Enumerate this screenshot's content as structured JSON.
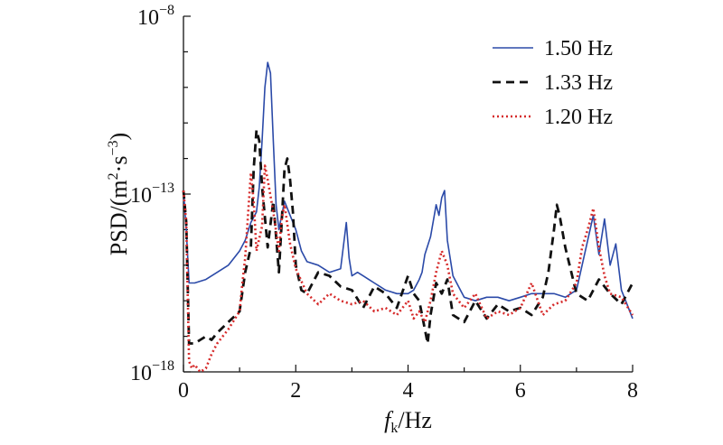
{
  "chart_data": {
    "type": "line",
    "xlabel": {
      "main": "f",
      "sub": "k",
      "rest": "/Hz"
    },
    "ylabel": {
      "base": "PSD/(m",
      "sup1": "2",
      "mid": "·s",
      "sup2": "−3",
      "end": ")"
    },
    "xlim": [
      0,
      8
    ],
    "ylim_log10": [
      -18,
      -8
    ],
    "y_scale": "log",
    "x_ticks": [
      "0",
      "2",
      "4",
      "6",
      "8"
    ],
    "y_ticks": [
      {
        "base": "10",
        "exp": "−8",
        "value": -8
      },
      {
        "base": "10",
        "exp": "−13",
        "value": -13
      },
      {
        "base": "10",
        "exp": "−18",
        "value": -18
      }
    ],
    "legend_position": "top-right",
    "series": [
      {
        "name": "1.50 Hz",
        "color": "#2b4aa8",
        "style": "solid",
        "x": [
          0,
          0.05,
          0.1,
          0.2,
          0.4,
          0.6,
          0.8,
          1.0,
          1.1,
          1.2,
          1.3,
          1.35,
          1.4,
          1.45,
          1.5,
          1.55,
          1.6,
          1.65,
          1.7,
          1.8,
          1.9,
          2.0,
          2.1,
          2.2,
          2.4,
          2.6,
          2.8,
          2.9,
          2.95,
          3.0,
          3.1,
          3.2,
          3.3,
          3.4,
          3.5,
          3.6,
          3.8,
          4.0,
          4.1,
          4.2,
          4.25,
          4.3,
          4.4,
          4.5,
          4.55,
          4.6,
          4.65,
          4.7,
          4.8,
          5.0,
          5.2,
          5.4,
          5.6,
          5.8,
          6.0,
          6.2,
          6.4,
          6.6,
          6.8,
          7.0,
          7.2,
          7.3,
          7.4,
          7.5,
          7.6,
          7.7,
          7.8,
          7.9,
          8.0
        ],
        "y_log10": [
          -12.9,
          -14.0,
          -15.5,
          -15.5,
          -15.4,
          -15.2,
          -15.0,
          -14.6,
          -14.3,
          -13.8,
          -13.5,
          -12.8,
          -11.5,
          -10.0,
          -9.3,
          -9.6,
          -11.5,
          -13.3,
          -14.0,
          -13.2,
          -13.6,
          -14.0,
          -14.6,
          -14.9,
          -15.0,
          -15.2,
          -15.1,
          -13.8,
          -14.8,
          -15.3,
          -15.2,
          -15.3,
          -15.4,
          -15.5,
          -15.6,
          -15.7,
          -15.8,
          -15.8,
          -15.7,
          -15.4,
          -15.2,
          -14.7,
          -14.2,
          -13.3,
          -13.6,
          -13.1,
          -12.9,
          -14.3,
          -15.3,
          -15.9,
          -16.0,
          -15.9,
          -15.9,
          -16.0,
          -15.9,
          -15.8,
          -15.8,
          -15.8,
          -15.9,
          -15.7,
          -14.3,
          -13.6,
          -14.7,
          -13.7,
          -15.0,
          -14.4,
          -15.7,
          -16.1,
          -16.5
        ]
      },
      {
        "name": "1.33 Hz",
        "color": "#111111",
        "style": "dashed",
        "x": [
          0,
          0.05,
          0.1,
          0.2,
          0.3,
          0.4,
          0.5,
          0.6,
          0.8,
          1.0,
          1.1,
          1.2,
          1.25,
          1.3,
          1.35,
          1.4,
          1.5,
          1.6,
          1.7,
          1.75,
          1.8,
          1.85,
          1.9,
          1.95,
          2.0,
          2.1,
          2.2,
          2.4,
          2.6,
          2.8,
          3.0,
          3.2,
          3.4,
          3.6,
          3.8,
          4.0,
          4.1,
          4.2,
          4.3,
          4.35,
          4.4,
          4.5,
          4.6,
          4.7,
          4.8,
          5.0,
          5.2,
          5.4,
          5.6,
          5.8,
          6.0,
          6.2,
          6.4,
          6.5,
          6.6,
          6.65,
          6.7,
          6.8,
          7.0,
          7.2,
          7.4,
          7.6,
          7.8,
          7.9,
          8.0
        ],
        "y_log10": [
          -12.9,
          -13.8,
          -17.2,
          -17.2,
          -17.1,
          -17.0,
          -17.1,
          -16.9,
          -16.6,
          -16.3,
          -15.2,
          -14.5,
          -12.3,
          -11.2,
          -11.5,
          -12.8,
          -14.5,
          -13.2,
          -15.2,
          -13.8,
          -12.3,
          -12.0,
          -12.6,
          -13.5,
          -15.0,
          -15.7,
          -15.8,
          -15.2,
          -15.3,
          -15.6,
          -15.7,
          -16.2,
          -15.6,
          -15.8,
          -16.2,
          -15.3,
          -15.8,
          -16.0,
          -16.8,
          -17.2,
          -16.4,
          -15.5,
          -15.8,
          -15.4,
          -16.4,
          -16.6,
          -16.0,
          -16.5,
          -16.1,
          -16.3,
          -16.2,
          -16.4,
          -15.9,
          -15.2,
          -14.0,
          -13.3,
          -13.6,
          -14.5,
          -15.8,
          -16.0,
          -15.4,
          -15.8,
          -16.1,
          -15.8,
          -15.5
        ]
      },
      {
        "name": "1.20 Hz",
        "color": "#d62b2b",
        "style": "dotted",
        "x": [
          0,
          0.05,
          0.1,
          0.15,
          0.2,
          0.3,
          0.4,
          0.5,
          0.6,
          0.8,
          1.0,
          1.05,
          1.1,
          1.15,
          1.2,
          1.25,
          1.3,
          1.4,
          1.45,
          1.5,
          1.6,
          1.7,
          1.75,
          1.8,
          1.9,
          2.0,
          2.2,
          2.4,
          2.6,
          2.8,
          3.0,
          3.2,
          3.4,
          3.6,
          3.8,
          4.0,
          4.1,
          4.2,
          4.3,
          4.4,
          4.5,
          4.6,
          4.7,
          4.8,
          5.0,
          5.2,
          5.4,
          5.6,
          5.8,
          6.0,
          6.2,
          6.4,
          6.6,
          6.8,
          7.0,
          7.1,
          7.2,
          7.3,
          7.4,
          7.5,
          7.6,
          7.8,
          8.0
        ],
        "y_log10": [
          -12.9,
          -13.8,
          -17.7,
          -17.9,
          -17.8,
          -18.0,
          -17.9,
          -17.5,
          -17.2,
          -16.8,
          -16.3,
          -15.5,
          -14.8,
          -13.6,
          -12.4,
          -13.2,
          -14.6,
          -13.9,
          -12.2,
          -12.6,
          -13.5,
          -14.6,
          -13.7,
          -13.3,
          -14.4,
          -15.1,
          -15.8,
          -16.1,
          -15.8,
          -16.0,
          -16.1,
          -16.0,
          -16.3,
          -16.2,
          -16.4,
          -16.0,
          -16.5,
          -16.3,
          -16.6,
          -16.0,
          -15.2,
          -14.6,
          -15.0,
          -15.8,
          -16.2,
          -15.8,
          -16.5,
          -16.3,
          -16.4,
          -16.2,
          -15.5,
          -16.4,
          -16.1,
          -16.0,
          -15.5,
          -14.5,
          -14.0,
          -13.4,
          -14.5,
          -15.3,
          -15.8,
          -15.9,
          -16.4
        ]
      }
    ]
  }
}
